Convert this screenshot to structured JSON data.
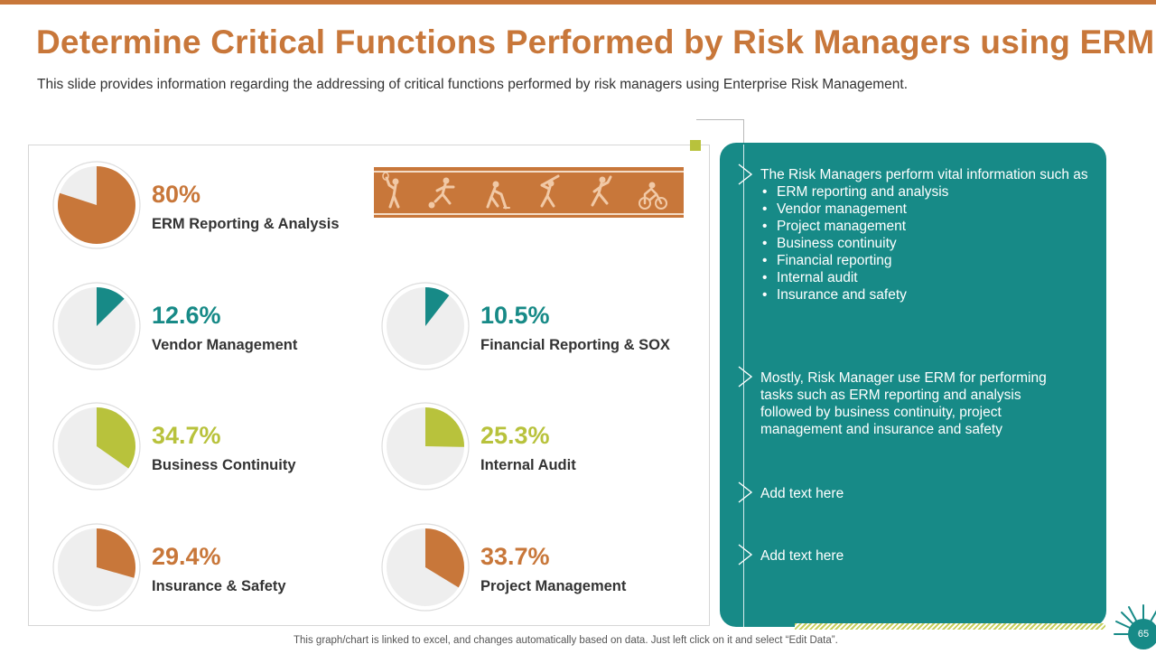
{
  "slide": {
    "title": "Determine Critical Functions Performed by Risk Managers using ERM",
    "subtitle": "This slide provides information regarding the addressing of critical functions performed by risk managers using Enterprise Risk Management.",
    "footnote": "This graph/chart is linked to excel, and changes automatically based on data. Just left click on it and select “Edit Data”.",
    "page_number": "65"
  },
  "colors": {
    "brand_orange": "#c8773a",
    "teal": "#178a87",
    "olive": "#b8c23c",
    "pie_background": "#eeeeee"
  },
  "chart_data": {
    "type": "pie",
    "series": [
      {
        "label": "ERM Reporting & Analysis",
        "value": 80,
        "value_label": "80%",
        "color": "#c8773a"
      },
      {
        "label": "Vendor Management",
        "value": 12.6,
        "value_label": "12.6%",
        "color": "#178a87"
      },
      {
        "label": "Financial Reporting & SOX",
        "value": 10.5,
        "value_label": "10.5%",
        "color": "#178a87"
      },
      {
        "label": "Business Continuity",
        "value": 34.7,
        "value_label": "34.7%",
        "color": "#b8c23c"
      },
      {
        "label": "Internal Audit",
        "value": 25.3,
        "value_label": "25.3%",
        "color": "#b8c23c"
      },
      {
        "label": "Insurance & Safety",
        "value": 29.4,
        "value_label": "29.4%",
        "color": "#c8773a"
      },
      {
        "label": "Project Management",
        "value": 33.7,
        "value_label": "33.7%",
        "color": "#c8773a"
      }
    ]
  },
  "banner": {
    "icons": [
      "tennis-player-icon",
      "soccer-player-icon",
      "hockey-player-icon",
      "baseball-batter-icon",
      "baseball-pitcher-icon",
      "cyclist-icon"
    ]
  },
  "side_card": {
    "block1_intro": "The Risk Managers perform vital information such as",
    "block1_items": [
      "ERM reporting and analysis",
      "Vendor management",
      "Project management",
      "Business continuity",
      "Financial reporting",
      "Internal  audit",
      "Insurance  and safety"
    ],
    "block2_lines": [
      "Mostly, Risk Manager use ERM for performing",
      "tasks such as ERM reporting and analysis",
      "followed by business continuity,  project",
      "management and insurance and safety"
    ],
    "block3": "Add text here",
    "block4": "Add text here"
  }
}
